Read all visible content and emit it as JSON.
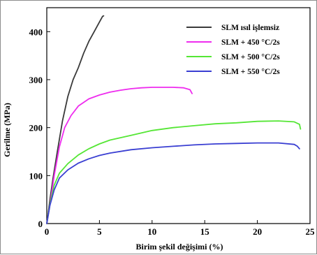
{
  "chart_data": {
    "type": "line",
    "xlabel": "Birim şekil değişimi (%)",
    "ylabel": "Gerilme (MPa)",
    "xlim": [
      0,
      25
    ],
    "ylim": [
      0,
      450
    ],
    "xticks": [
      0,
      5,
      10,
      15,
      20,
      25
    ],
    "yticks": [
      0,
      100,
      200,
      300,
      400
    ],
    "grid": false,
    "legend_position": "top-right",
    "series": [
      {
        "name": "SLM ısıl işlemsiz",
        "color": "#3a3a3a",
        "points": [
          [
            0,
            0
          ],
          [
            0.1,
            15
          ],
          [
            0.3,
            50
          ],
          [
            0.6,
            95
          ],
          [
            1,
            150
          ],
          [
            1.5,
            215
          ],
          [
            2,
            265
          ],
          [
            2.5,
            300
          ],
          [
            3,
            325
          ],
          [
            3.5,
            355
          ],
          [
            4,
            380
          ],
          [
            4.5,
            400
          ],
          [
            5,
            420
          ],
          [
            5.3,
            432
          ],
          [
            5.4,
            433
          ]
        ]
      },
      {
        "name": "SLM + 450 °C/2s",
        "color": "#ee2cee",
        "points": [
          [
            0,
            0
          ],
          [
            0.3,
            40
          ],
          [
            0.7,
            100
          ],
          [
            1.2,
            160
          ],
          [
            1.7,
            200
          ],
          [
            2.3,
            225
          ],
          [
            3,
            245
          ],
          [
            4,
            260
          ],
          [
            5,
            268
          ],
          [
            6,
            274
          ],
          [
            7,
            278
          ],
          [
            8,
            281
          ],
          [
            9,
            283
          ],
          [
            10,
            284
          ],
          [
            11,
            284
          ],
          [
            12,
            284
          ],
          [
            13,
            283
          ],
          [
            13.6,
            279
          ],
          [
            13.8,
            271
          ]
        ]
      },
      {
        "name": "SLM + 500 °C/2s",
        "color": "#55e635",
        "points": [
          [
            0,
            0
          ],
          [
            0.3,
            40
          ],
          [
            0.7,
            80
          ],
          [
            1.2,
            105
          ],
          [
            2,
            125
          ],
          [
            3,
            143
          ],
          [
            4,
            156
          ],
          [
            5,
            166
          ],
          [
            6,
            174
          ],
          [
            8,
            184
          ],
          [
            10,
            194
          ],
          [
            12,
            200
          ],
          [
            14,
            204
          ],
          [
            16,
            208
          ],
          [
            18,
            210
          ],
          [
            20,
            213
          ],
          [
            22,
            214
          ],
          [
            23.5,
            212
          ],
          [
            24,
            207
          ],
          [
            24.1,
            197
          ]
        ]
      },
      {
        "name": "SLM + 550 °C/2s",
        "color": "#3a3fd2",
        "points": [
          [
            0,
            0
          ],
          [
            0.3,
            38
          ],
          [
            0.7,
            70
          ],
          [
            1.2,
            95
          ],
          [
            2,
            112
          ],
          [
            3,
            126
          ],
          [
            4,
            135
          ],
          [
            5,
            142
          ],
          [
            6,
            147
          ],
          [
            8,
            154
          ],
          [
            10,
            158
          ],
          [
            12,
            161
          ],
          [
            14,
            164
          ],
          [
            16,
            166
          ],
          [
            18,
            167
          ],
          [
            20,
            168
          ],
          [
            22,
            168
          ],
          [
            23.5,
            165
          ],
          [
            23.8,
            161
          ],
          [
            24,
            156
          ]
        ]
      }
    ]
  }
}
